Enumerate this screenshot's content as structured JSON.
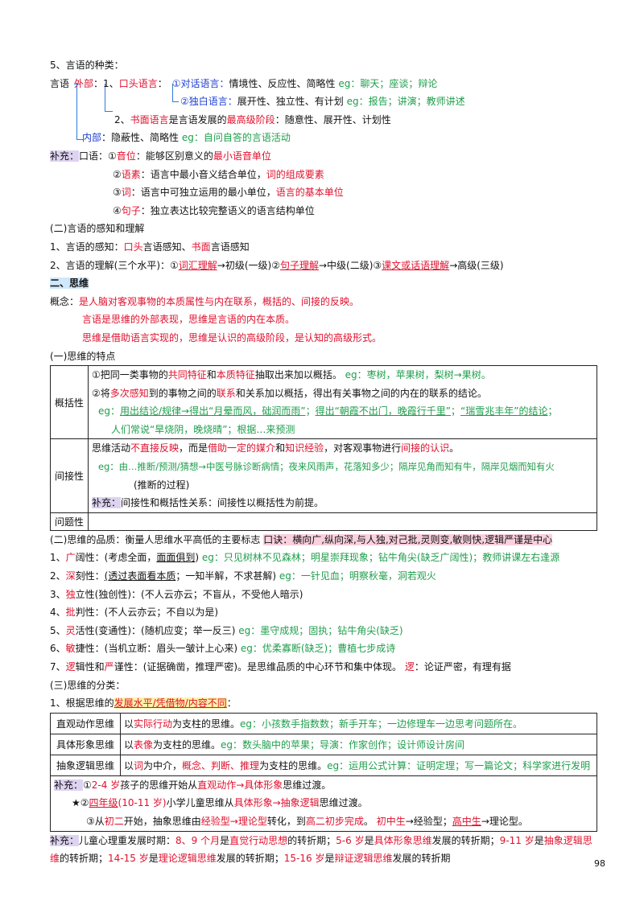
{
  "s5": {
    "title": "5、言语的种类：",
    "root": "言语",
    "outer": "外部",
    "oral_num": "1、",
    "oral": "口头语言",
    "dialog": "①对话语言：",
    "dialog_desc": "情境性、反应性、简略性 ",
    "dialog_eg": "eg：聊天；座谈；辩论",
    "mono": "②独白语言：",
    "mono_desc": "展开性、独立性、有计划 ",
    "mono_eg": "eg：报告；讲演；教师讲述",
    "written_num": "2、",
    "written": "书面语言",
    "written_mid": "是言语发展的",
    "written_stage": "最高级阶段",
    "written_desc": "：随意性、展开性、计划性",
    "inner": "内部",
    "inner_desc": "：隐蔽性、简略性 ",
    "inner_eg": "eg：自问自答的言语活动"
  },
  "supp1": {
    "tag": "补充：",
    "lead": "口语：",
    "i1a": "①",
    "i1b": "音位",
    "i1c": "：能够区别意义的",
    "i1d": "最小语音单位",
    "i2a": "②",
    "i2b": "语素",
    "i2c": "：语言中最小音义结合单位，",
    "i2d": "词的组成要素",
    "i3a": "③",
    "i3b": "词",
    "i3c": "：语言中可独立运用的最小单位，",
    "i3d": "语言的基本单位",
    "i4a": "④",
    "i4b": "句子",
    "i4c": "：独立表达比较完整语义的语言结构单位"
  },
  "s2": {
    "title": "(二)言语的感知和理解",
    "l1a": "1、言语的感知：",
    "l1b": "口头",
    "l1c": "言语感知、",
    "l1d": "书面",
    "l1e": "言语感知",
    "l2a": "2、言语的理解(三个水平)：①",
    "l2b": "词汇理解",
    "l2c": "→初级(一级)②",
    "l2d": "句子理解",
    "l2e": "→中级(二级)③",
    "l2f": "课文或话语理解",
    "l2g": "→高级(三级)"
  },
  "think": {
    "title": "二、思维",
    "c1a": "概念：",
    "c1b": "是人脑对客观事物的本质属性与内在联系，概括的、间接的反映。",
    "c2": "言语是思维的外部表现，思维是言语的内在本质。",
    "c3": "思维是借助语言实现的，思维是认识的高级阶段，是认知的高级形式。"
  },
  "feat": {
    "title": "(一)思维的特点",
    "gen_label": "概括性",
    "g1a": "①把同一类事物的",
    "g1b": "共同特征",
    "g1c": "和",
    "g1d": "本质特征",
    "g1e": "抽取出来加以概括。 ",
    "g1f": "eg：枣树，苹果树，梨树→果树。",
    "g2a": "②将",
    "g2b": "多次感知",
    "g2c": "到的事物之间的",
    "g2d": "联系",
    "g2e": "和关系加以概括，得出有关事物之间的内在的联系的结论。",
    "g3a": "eg：",
    "g3b": "用出结论/规律→得出“月晕而风，础润而雨”",
    "g3c": "；",
    "g3d": "得出“朝霞不出门，晚霞行千里”",
    "g3e": "；",
    "g3f": "“瑞雪兆丰年”的结论",
    "g3g": "；",
    "g4": "人们常说“旱烧阴，晚烧晴”；根据…来预测",
    "ind_label": "间接性",
    "n1a": "思维活动",
    "n1b": "不直接反映",
    "n1c": "，而是",
    "n1d": "借助一定的媒介",
    "n1e": "和",
    "n1f": "知识经验",
    "n1g": "，对客观事物进行",
    "n1h": "间接的认识",
    "n1i": "。",
    "n2": "eg：由…推断/预测/猜想→中医号脉诊断病情；夜来风雨声，花落知多少；隔岸见角而知有牛，隔岸见烟而知有火",
    "n3": "(推断的过程)",
    "n4a": "补充：",
    "n4b": "间接性和概括性关系：间接性以概括性为前提。",
    "prob_label": "问题性"
  },
  "qual": {
    "title_a": "(二)思维的品质：衡量人思维水平高低的主要标志  ",
    "title_b": "口诀：横向广,纵向深,与人独,对己批,灵则变,敏则快,逻辑严谨是中心",
    "q1a": "1、",
    "q1b": "广",
    "q1c": "阔性：(考虑全面，",
    "q1d": "面面俱到",
    "q1e": ") ",
    "q1f": "eg：只见树林不见森林；明星崇拜现象；钻牛角尖(缺乏广阔性)；教师讲课左右逢源",
    "q2a": "2、",
    "q2b": "深",
    "q2c": "刻性：",
    "q2d": "(透过表面看本质",
    "q2e": "；一知半解，不求甚解) ",
    "q2f": "eg：一针见血；明察秋毫，洞若观火",
    "q3a": "3、",
    "q3b": "独",
    "q3c": "立性(独创性)：(不人云亦云；不盲从，不受他人暗示)",
    "q4a": "4、",
    "q4b": "批",
    "q4c": "判性：(不人云亦云；不自以为是)",
    "q5a": "5、",
    "q5b": "灵",
    "q5c": "活性(变通性)：(随机应变；举一反三) ",
    "q5d": "eg：墨守成规；固执；钻牛角尖(缺乏)",
    "q6a": "6、",
    "q6b": "敏",
    "q6c": "捷性：(当机立断：眉头一皱计上心来) ",
    "q6d": "eg：优柔寡断(缺乏)；曹植七步成诗",
    "q7a": "7、",
    "q7b": "逻",
    "q7c": "辑性和",
    "q7d": "严",
    "q7e": "谨性：(证据确凿，推理严密)。是思维品质的中心环节和集中体现。   ",
    "q7f": "逻",
    "q7g": "：论证严密，有理有据"
  },
  "cls": {
    "title": "(三)思维的分类：",
    "l1a": "1、根据思维的",
    "l1b": "发展水平/凭借物/内容不同",
    "l1c": "：",
    "rows": [
      {
        "label": "直观动作思维",
        "a": "以",
        "b": "实际行动",
        "c": "为支柱的思维。",
        "d": "eg：小孩数手指数数；新手开车；一边修理车一边思考问题所在。"
      },
      {
        "label": "具体形象思维",
        "a": "以",
        "b": "表像",
        "c": "为支柱的思维。",
        "d": "eg：数头脑中的苹果；导演：作家创作；设计师设计房间"
      },
      {
        "label": "抽象逻辑思维",
        "a": "以",
        "b": "词",
        "c": "为中介，",
        "b2": "概念、判断、推理",
        "c2": "为支柱的思维。",
        "d": "eg：运用公式计算：证明定理；写一篇论文；科学家进行发明"
      }
    ],
    "sup_tag": "补充：",
    "s1a": "①",
    "s1b": "2-4 岁",
    "s1c": "孩子的思维开始从",
    "s1d": "直观动作→具体形象",
    "s1e": "思维过渡。",
    "s2a": "★②",
    "s2b": "四年级",
    "s2c": "(10-11 岁)",
    "s2d": "小学儿童思维从",
    "s2e": "具体形象→抽象逻辑",
    "s2f": "思维过渡。",
    "s3a": "③从",
    "s3b": "初二",
    "s3c": "开始，抽象思维由",
    "s3d": "经验型→理论型",
    "s3e": "转化，到",
    "s3f": "高二初步完成",
    "s3g": "。  ",
    "s3h": "初中生",
    "s3i": "→经验型；",
    "s3j": "高中生",
    "s3k": "→理论型。"
  },
  "final": {
    "tag": "补充：",
    "a": "儿童心理重发展时期：",
    "b": "8、9 个月",
    "c": "是",
    "d": "直觉行动思想",
    "e": "的转折期；",
    "f": "5-6 岁",
    "g": "是",
    "h": "具体形象思维",
    "i": "发展的转折期；",
    "j": "9-11 岁",
    "k": "是",
    "l": "抽象逻辑思",
    "m": "维",
    "n": "的转折期；",
    "o": "14-15 岁",
    "p": "是",
    "q": "理论逻辑思维",
    "r": "发展的转折期；",
    "s": "15-16 岁",
    "t": "是",
    "u": "辩证逻辑思维",
    "v": "发展的转折期"
  },
  "page_number": "98"
}
